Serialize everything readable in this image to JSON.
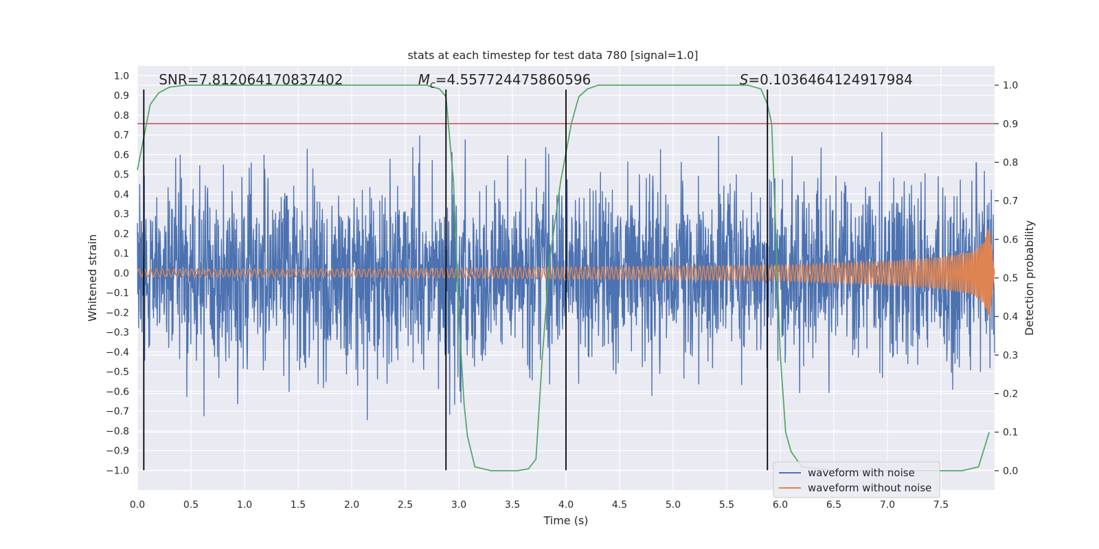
{
  "chart_data": {
    "type": "line",
    "title": "stats at each timestep for test data 780 [signal=1.0]",
    "xlabel": "Time (s)",
    "ylabel": "Whitened strain",
    "y2label": "Detection probability",
    "xlim": [
      0.0,
      8.0
    ],
    "ylim": [
      -1.1,
      1.05
    ],
    "y2lim": [
      -0.05,
      1.05
    ],
    "xticks": [
      0.0,
      0.5,
      1.0,
      1.5,
      2.0,
      2.5,
      3.0,
      3.5,
      4.0,
      4.5,
      5.0,
      5.5,
      6.0,
      6.5,
      7.0,
      7.5
    ],
    "xtick_labels": [
      "0.0",
      "0.5",
      "1.0",
      "1.5",
      "2.0",
      "2.5",
      "3.0",
      "3.5",
      "4.0",
      "4.5",
      "5.0",
      "5.5",
      "6.0",
      "6.5",
      "7.0",
      "7.5"
    ],
    "yticks": [
      1.0,
      0.9,
      0.8,
      0.7,
      0.6,
      0.5,
      0.4,
      0.3,
      0.2,
      0.1,
      0.0,
      -0.1,
      -0.2,
      -0.3,
      -0.4,
      -0.5,
      -0.6,
      -0.7,
      -0.8,
      -0.9,
      -1.0
    ],
    "ytick_labels": [
      "1.0",
      "0.9",
      "0.8",
      "0.7",
      "0.6",
      "0.5",
      "0.4",
      "0.3",
      "0.2",
      "0.1",
      "0.0",
      "−0.1",
      "−0.2",
      "−0.3",
      "−0.4",
      "−0.5",
      "−0.6",
      "−0.7",
      "−0.8",
      "−0.9",
      "−1.0"
    ],
    "y2ticks": [
      1.0,
      0.9,
      0.8,
      0.7,
      0.6,
      0.5,
      0.4,
      0.3,
      0.2,
      0.1,
      0.0
    ],
    "y2tick_labels": [
      "1.0",
      "0.9",
      "0.8",
      "0.7",
      "0.6",
      "0.5",
      "0.4",
      "0.3",
      "0.2",
      "0.1",
      "0.0"
    ],
    "grid": true,
    "background": "#eaeaf2",
    "legend_position": "bottom-right",
    "annotations": [
      {
        "text": "SNR=7.812064170837402",
        "x": 0.2
      },
      {
        "text": "=4.557724475860596",
        "prefix": "M",
        "subscript": "c",
        "x": 2.62
      },
      {
        "text": "=0.1036464124917984",
        "prefix": "S",
        "x": 5.62
      }
    ],
    "series": [
      {
        "name": "waveform with noise",
        "color": "#4c72b0",
        "kind": "noise",
        "envelope": {
          "x": [
            0.0,
            8.0
          ],
          "ymax_typical": 0.55,
          "ymin_typical": -0.55,
          "peak_max": 0.91,
          "peak_min": -1.0
        }
      },
      {
        "name": "waveform without noise",
        "color": "#dd8452",
        "kind": "chirp",
        "amplitude": {
          "x": [
            0.0,
            2.0,
            4.0,
            6.0,
            7.0,
            7.5,
            7.8,
            7.9,
            7.95,
            8.0
          ],
          "y": [
            0.02,
            0.02,
            0.03,
            0.04,
            0.06,
            0.08,
            0.11,
            0.16,
            0.24,
            0.0
          ]
        }
      },
      {
        "name": "",
        "color": "#55a868",
        "axis": "right",
        "kind": "probability",
        "x": [
          0.0,
          0.05,
          0.12,
          0.2,
          0.3,
          0.45,
          1.0,
          2.0,
          2.7,
          2.82,
          2.88,
          2.95,
          3.0,
          3.05,
          3.08,
          3.15,
          3.3,
          3.55,
          3.65,
          3.72,
          3.78,
          3.85,
          3.95,
          4.05,
          4.12,
          4.2,
          4.3,
          4.5,
          5.0,
          5.7,
          5.82,
          5.88,
          5.92,
          5.96,
          6.0,
          6.05,
          6.1,
          6.2,
          6.5,
          7.0,
          7.7,
          7.85,
          7.95
        ],
        "y": [
          0.78,
          0.85,
          0.95,
          0.98,
          0.995,
          1.0,
          1.0,
          1.0,
          1.0,
          0.99,
          0.97,
          0.75,
          0.4,
          0.17,
          0.09,
          0.01,
          0.0,
          0.0,
          0.005,
          0.03,
          0.3,
          0.55,
          0.75,
          0.9,
          0.97,
          0.99,
          1.0,
          1.0,
          1.0,
          1.0,
          0.99,
          0.95,
          0.9,
          0.6,
          0.3,
          0.1,
          0.05,
          0.01,
          0.0,
          0.0,
          0.0,
          0.01,
          0.1
        ]
      }
    ],
    "hlines": [
      {
        "y": 0.9,
        "axis": "right",
        "color": "#c44e52"
      }
    ],
    "vlines": [
      {
        "x": 0.06,
        "ymin": -1.0,
        "ymax": 0.93,
        "color": "#000000"
      },
      {
        "x": 2.88,
        "ymin": -1.0,
        "ymax": 0.93,
        "color": "#000000"
      },
      {
        "x": 4.0,
        "ymin": -1.0,
        "ymax": 0.93,
        "color": "#000000"
      },
      {
        "x": 5.88,
        "ymin": -1.0,
        "ymax": 0.93,
        "color": "#000000"
      }
    ]
  }
}
